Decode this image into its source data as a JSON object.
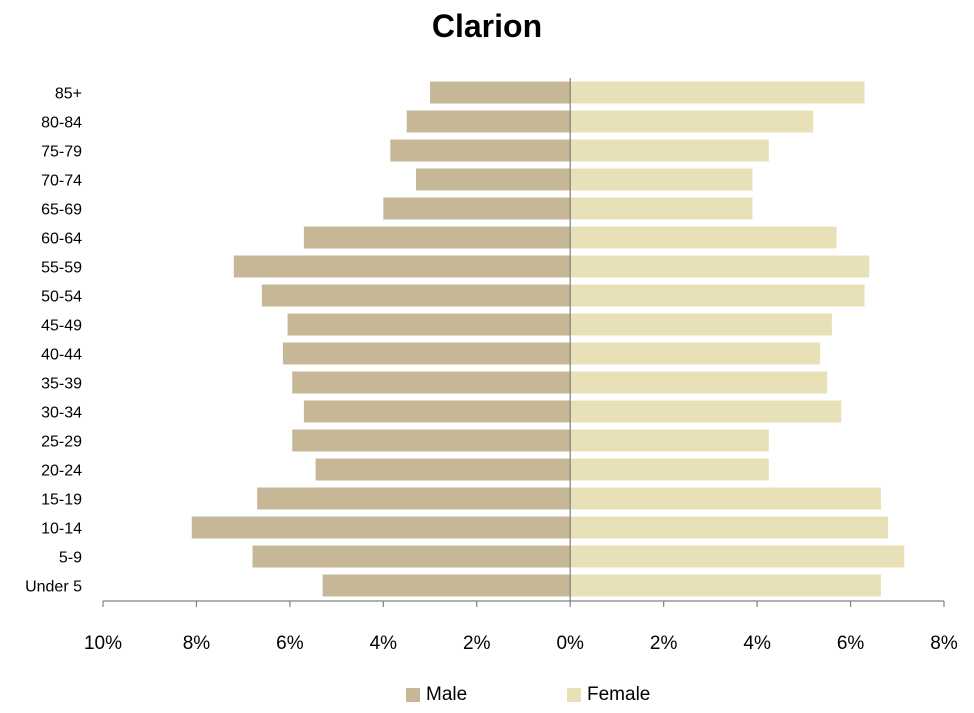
{
  "chart_data": {
    "type": "bar",
    "orientation": "horizontal-population-pyramid",
    "title": "Clarion",
    "categories": [
      "85+",
      "80-84",
      "75-79",
      "70-74",
      "65-69",
      "60-64",
      "55-59",
      "50-54",
      "45-49",
      "40-44",
      "35-39",
      "30-34",
      "25-29",
      "20-24",
      "15-19",
      "10-14",
      "5-9",
      "Under 5"
    ],
    "series": [
      {
        "name": "Male",
        "color": "#c6b896",
        "values": [
          3.0,
          3.5,
          3.85,
          3.3,
          4.0,
          5.7,
          7.2,
          6.6,
          6.05,
          6.15,
          5.95,
          5.7,
          5.95,
          5.45,
          6.7,
          8.1,
          6.8,
          5.3
        ]
      },
      {
        "name": "Female",
        "color": "#e8e0b6",
        "values": [
          6.3,
          5.2,
          4.25,
          3.9,
          3.9,
          5.7,
          6.4,
          6.3,
          5.6,
          5.35,
          5.5,
          5.8,
          4.25,
          4.25,
          6.65,
          6.8,
          7.15,
          6.65
        ]
      }
    ],
    "xlim": [
      -10,
      8
    ],
    "x_ticks": [
      -10,
      -8,
      -6,
      -4,
      -2,
      0,
      2,
      4,
      6,
      8
    ],
    "x_tick_labels": [
      "10%",
      "8%",
      "6%",
      "4%",
      "2%",
      "0%",
      "2%",
      "4%",
      "6%",
      "8%"
    ],
    "xlabel": "",
    "ylabel": "",
    "grid": false,
    "legend_position": "bottom"
  }
}
